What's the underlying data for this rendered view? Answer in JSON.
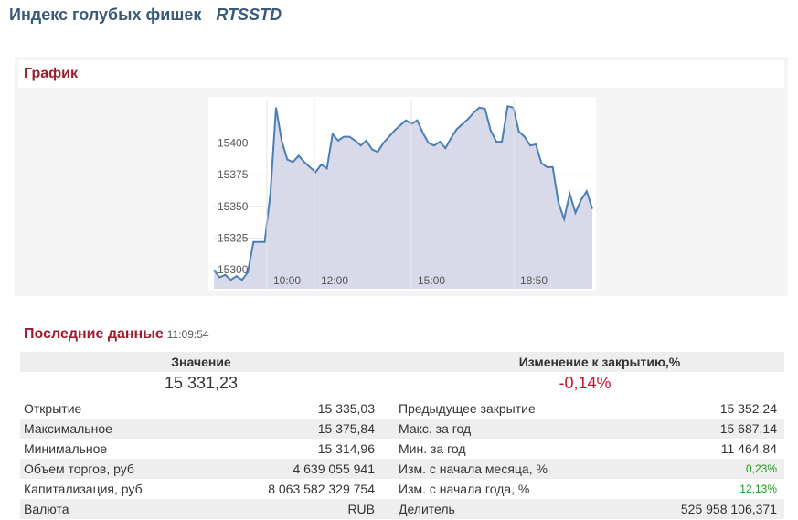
{
  "header": {
    "title": "Индекс голубых фишек",
    "ticker": "RTSSTD"
  },
  "chart_panel": {
    "heading": "График"
  },
  "chart_data": {
    "type": "area",
    "y_ticks": [
      "15400",
      "15375",
      "15350",
      "15325",
      "15300"
    ],
    "x_ticks": [
      "10:00",
      "12:00",
      "15:00",
      "18:50"
    ],
    "ylim": [
      15285,
      15435
    ],
    "line_color": "#4a7fb5",
    "fill_color": "#d8daea",
    "grid": true,
    "series": [
      {
        "values": [
          15300,
          15294,
          15296,
          15292,
          15295,
          15292,
          15298,
          15322,
          15322,
          15322,
          15360,
          15428,
          15402,
          15387,
          15385,
          15390,
          15385,
          15381,
          15377,
          15383,
          15380,
          15407,
          15402,
          15405,
          15405,
          15402,
          15398,
          15402,
          15395,
          15393,
          15400,
          15405,
          15410,
          15414,
          15418,
          15415,
          15418,
          15408,
          15400,
          15398,
          15401,
          15396,
          15404,
          15411,
          15415,
          15419,
          15424,
          15428,
          15427,
          15410,
          15401,
          15401,
          15429,
          15428,
          15409,
          15405,
          15398,
          15399,
          15384,
          15381,
          15381,
          15353,
          15340,
          15360,
          15345,
          15355,
          15362,
          15348
        ]
      }
    ]
  },
  "latest": {
    "heading": "Последние данные",
    "time": "11:09:54",
    "value_label": "Значение",
    "value": "15 331,23",
    "change_label": "Изменение к закрытию,%",
    "change": "-0,14%"
  },
  "rows": [
    {
      "l1": "Открытие",
      "v1": "15 335,03",
      "l2": "Предыдущее закрытие",
      "v2": "15 352,24"
    },
    {
      "l1": "Максимальное",
      "v1": "15 375,84",
      "l2": "Макс. за год",
      "v2": "15 687,14"
    },
    {
      "l1": "Минимальное",
      "v1": "15 314,96",
      "l2": "Мин. за год",
      "v2": "11 464,84"
    },
    {
      "l1": "Объем торгов, руб",
      "v1": "4 639 055 941",
      "l2": "Изм. с начала месяца, %",
      "v2": "0,23%"
    },
    {
      "l1": "Капитализация, руб",
      "v1": "8 063 582 329 754",
      "l2": "Изм. с начала года, %",
      "v2": "12,13%"
    },
    {
      "l1": "Валюта",
      "v1": "RUB",
      "l2": "Делитель",
      "v2": "525 958 106,371"
    }
  ],
  "colors": {
    "heading": "#9b1c2c",
    "negative": "#c8102e",
    "positive": "#1a9a1a",
    "title": "#3a5a7a"
  }
}
